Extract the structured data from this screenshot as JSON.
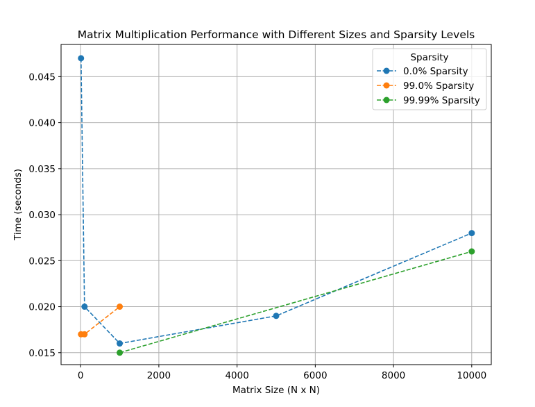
{
  "chart_data": {
    "type": "line",
    "title": "Matrix Multiplication Performance with Different Sizes and Sparsity Levels",
    "xlabel": "Matrix Size (N x N)",
    "ylabel": "Time (seconds)",
    "xlim": [
      -500,
      10500
    ],
    "ylim": [
      0.0137,
      0.0485
    ],
    "xticks": [
      0,
      2000,
      4000,
      6000,
      8000,
      10000
    ],
    "xtick_labels": [
      "0",
      "2000",
      "4000",
      "6000",
      "8000",
      "10000"
    ],
    "yticks": [
      0.015,
      0.02,
      0.025,
      0.03,
      0.035,
      0.04,
      0.045
    ],
    "ytick_labels": [
      "0.015",
      "0.020",
      "0.025",
      "0.030",
      "0.035",
      "0.040",
      "0.045"
    ],
    "grid": true,
    "legend": {
      "title": "Sparsity",
      "placement": "top-right"
    },
    "series": [
      {
        "name": "0.0% Sparsity",
        "color": "#1f77b4",
        "marker": "circle",
        "linestyle": "dashed",
        "x": [
          10,
          100,
          1000,
          5000,
          10000
        ],
        "y": [
          0.047,
          0.02,
          0.016,
          0.019,
          0.028
        ]
      },
      {
        "name": "99.0% Sparsity",
        "color": "#ff7f0e",
        "marker": "circle",
        "linestyle": "dashed",
        "x": [
          10,
          100,
          1000
        ],
        "y": [
          0.017,
          0.017,
          0.02
        ]
      },
      {
        "name": "99.99% Sparsity",
        "color": "#2ca02c",
        "marker": "circle",
        "linestyle": "dashed",
        "x": [
          1000,
          10000
        ],
        "y": [
          0.015,
          0.026
        ]
      }
    ]
  }
}
